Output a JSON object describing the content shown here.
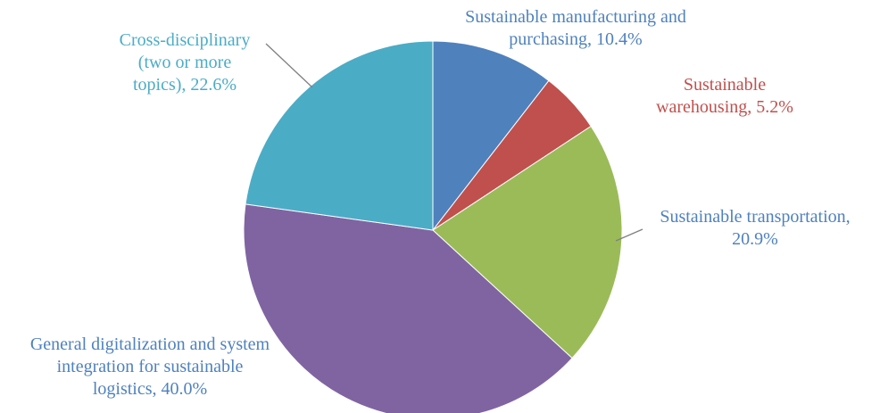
{
  "chart_data": {
    "type": "pie",
    "title": "",
    "slices": [
      {
        "name": "Sustainable manufacturing and purchasing",
        "value": 10.4,
        "label_lines": [
          "Sustainable manufacturing and",
          "purchasing, 10.4%"
        ],
        "color": "#4F81BD",
        "label_color": "#4F81BD"
      },
      {
        "name": "Sustainable warehousing",
        "value": 5.2,
        "label_lines": [
          "Sustainable",
          "warehousing, 5.2%"
        ],
        "color": "#C0504D",
        "label_color": "#C0504D"
      },
      {
        "name": "Sustainable transportation",
        "value": 20.9,
        "label_lines": [
          "Sustainable transportation,",
          "20.9%"
        ],
        "color": "#9BBB59",
        "label_color": "#4F81BD"
      },
      {
        "name": "General digitalization and system integration for sustainable logistics",
        "value": 40.0,
        "label_lines": [
          "General digitalization and system",
          "integration for sustainable",
          "logistics, 40.0%"
        ],
        "color": "#8064A2",
        "label_color": "#4F81BD"
      },
      {
        "name": "Cross-disciplinary (two or more topics)",
        "value": 22.6,
        "label_lines": [
          "Cross-disciplinary",
          "(two or more",
          "topics), 22.6%"
        ],
        "color": "#4BACC6",
        "label_color": "#4BACC6"
      }
    ]
  }
}
